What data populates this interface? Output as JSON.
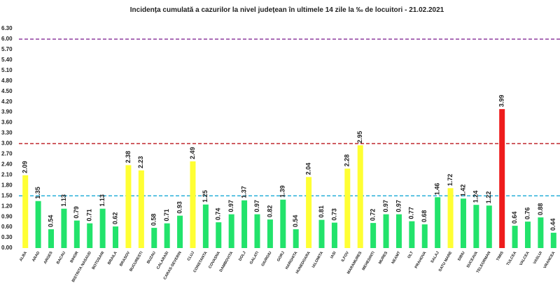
{
  "chart_data": {
    "type": "bar",
    "title": "Incidența cumulată a cazurilor la nivel județean în ultimele 14 zile la ‰ de locuitori - 21.02.2021",
    "categories": [
      "ALBA",
      "ARAD",
      "ARGES",
      "BACAU",
      "BIHOR",
      "BISTRITA NASAUD",
      "BOTOSANI",
      "BRAILA",
      "BRASOV",
      "BUCURESTI",
      "BUZAU",
      "CALARASI",
      "CARAS-SEVERIN",
      "CLUJ",
      "CONSTANTA",
      "COVASNA",
      "DAMBOVITA",
      "DOLJ",
      "GALATI",
      "GIURGIU",
      "GORJ",
      "HARGHITA",
      "HUNEDOARA",
      "IALOMITA",
      "IASI",
      "ILFOV",
      "MARAMURES",
      "MEHEDINTI",
      "MURES",
      "NEAMT",
      "OLT",
      "PRAHOVA",
      "SALAJ",
      "SATU MARE",
      "SIBIU",
      "SUCEAVA",
      "TELEORMAN",
      "TIMIS",
      "TULCEA",
      "VALCEA",
      "VASLUI",
      "VRANCEA"
    ],
    "values": [
      2.09,
      1.35,
      0.54,
      1.13,
      0.79,
      0.71,
      1.13,
      0.62,
      2.38,
      2.23,
      0.58,
      0.71,
      0.93,
      2.49,
      1.25,
      0.74,
      0.97,
      1.37,
      0.97,
      0.82,
      1.39,
      0.54,
      2.04,
      0.81,
      0.73,
      2.28,
      2.95,
      0.72,
      0.97,
      0.97,
      0.77,
      0.68,
      1.46,
      1.72,
      1.42,
      1.24,
      1.22,
      3.99,
      0.64,
      0.76,
      0.88,
      0.44
    ],
    "colors": [
      "#ffff33",
      "#22e36b",
      "#22e36b",
      "#22e36b",
      "#22e36b",
      "#22e36b",
      "#22e36b",
      "#22e36b",
      "#ffff33",
      "#ffff33",
      "#22e36b",
      "#22e36b",
      "#22e36b",
      "#ffff33",
      "#22e36b",
      "#22e36b",
      "#22e36b",
      "#22e36b",
      "#22e36b",
      "#22e36b",
      "#22e36b",
      "#22e36b",
      "#ffff33",
      "#22e36b",
      "#22e36b",
      "#ffff33",
      "#ffff33",
      "#22e36b",
      "#22e36b",
      "#22e36b",
      "#22e36b",
      "#22e36b",
      "#22e36b",
      "#ffff33",
      "#22e36b",
      "#22e36b",
      "#22e36b",
      "#ee1c1c",
      "#22e36b",
      "#22e36b",
      "#22e36b",
      "#22e36b"
    ],
    "ylim": [
      0,
      6.3
    ],
    "yticks": [
      {
        "value": 0,
        "label": "0.00"
      },
      {
        "value": 0.3,
        "label": "0.30"
      },
      {
        "value": 0.6,
        "label": "0.60"
      },
      {
        "value": 0.9,
        "label": "0.90"
      },
      {
        "value": 1.2,
        "label": "1.20"
      },
      {
        "value": 1.5,
        "label": "1.50"
      },
      {
        "value": 1.8,
        "label": "1.80"
      },
      {
        "value": 2.1,
        "label": "2.10"
      },
      {
        "value": 2.4,
        "label": "2.40"
      },
      {
        "value": 2.7,
        "label": "2.70"
      },
      {
        "value": 3,
        "label": "3.00"
      },
      {
        "value": 3.3,
        "label": "3.30"
      },
      {
        "value": 3.6,
        "label": "3.60"
      },
      {
        "value": 3.9,
        "label": "3.90"
      },
      {
        "value": 4.2,
        "label": "4.20"
      },
      {
        "value": 4.5,
        "label": "4.50"
      },
      {
        "value": 4.8,
        "label": "4.80"
      },
      {
        "value": 5.1,
        "label": "5.10"
      },
      {
        "value": 5.4,
        "label": "5.40"
      },
      {
        "value": 5.7,
        "label": "5.70"
      },
      {
        "value": 6,
        "label": "6.00"
      },
      {
        "value": 6.3,
        "label": "6.30"
      }
    ],
    "reference_lines": [
      {
        "value": 6,
        "color": "#8e3b9e"
      },
      {
        "value": 3,
        "color": "#c0262b"
      },
      {
        "value": 1.5,
        "color": "#2ab0d8"
      }
    ]
  }
}
